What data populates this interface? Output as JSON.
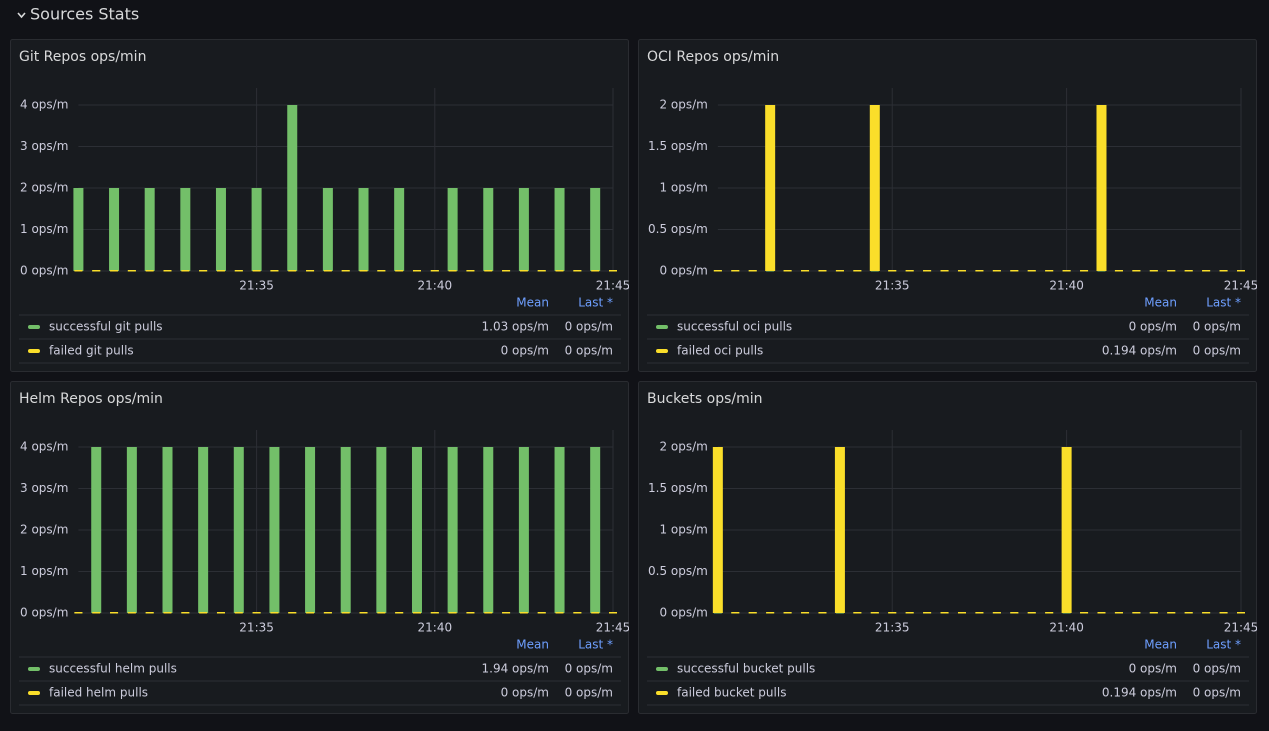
{
  "section_title": "Sources Stats",
  "chart_data": [
    {
      "type": "bar",
      "title": "Git Repos ops/min",
      "categories": [
        null,
        null,
        null,
        null,
        null,
        null,
        null,
        null,
        null,
        null,
        "21:35",
        null,
        null,
        null,
        null,
        null,
        null,
        null,
        null,
        null,
        "21:40",
        null,
        null,
        null,
        null,
        null,
        null,
        null,
        null,
        null,
        "21:45"
      ],
      "ylim": [
        0,
        4
      ],
      "yticks": [
        {
          "value": 0,
          "label": "0 ops/m"
        },
        {
          "value": 1,
          "label": "1 ops/m"
        },
        {
          "value": 2,
          "label": "2 ops/m"
        },
        {
          "value": 3,
          "label": "3 ops/m"
        },
        {
          "value": 4,
          "label": "4 ops/m"
        }
      ],
      "grid": true,
      "legend_columns": [
        "Mean",
        "Last *"
      ],
      "series": [
        {
          "name": "successful git pulls",
          "color": "#73bf69",
          "mean": "1.03 ops/m",
          "last": "0 ops/m",
          "values": [
            2,
            0,
            2,
            0,
            2,
            0,
            2,
            0,
            2,
            0,
            2,
            0,
            4,
            0,
            2,
            0,
            2,
            0,
            2,
            0,
            0,
            2,
            0,
            2,
            0,
            2,
            0,
            2,
            0,
            2,
            0
          ]
        },
        {
          "name": "failed git pulls",
          "color": "#fade2a",
          "mean": "0 ops/m",
          "last": "0 ops/m",
          "values": [
            0,
            0,
            0,
            0,
            0,
            0,
            0,
            0,
            0,
            0,
            0,
            0,
            0,
            0,
            0,
            0,
            0,
            0,
            0,
            0,
            0,
            0,
            0,
            0,
            0,
            0,
            0,
            0,
            0,
            0,
            0
          ]
        }
      ]
    },
    {
      "type": "bar",
      "title": "OCI Repos ops/min",
      "categories": [
        null,
        null,
        null,
        null,
        null,
        null,
        null,
        null,
        null,
        null,
        "21:35",
        null,
        null,
        null,
        null,
        null,
        null,
        null,
        null,
        null,
        "21:40",
        null,
        null,
        null,
        null,
        null,
        null,
        null,
        null,
        null,
        "21:45"
      ],
      "ylim": [
        0,
        2
      ],
      "yticks": [
        {
          "value": 0,
          "label": "0 ops/m"
        },
        {
          "value": 0.5,
          "label": "0.5 ops/m"
        },
        {
          "value": 1,
          "label": "1 ops/m"
        },
        {
          "value": 1.5,
          "label": "1.5 ops/m"
        },
        {
          "value": 2,
          "label": "2 ops/m"
        }
      ],
      "grid": true,
      "legend_columns": [
        "Mean",
        "Last *"
      ],
      "series": [
        {
          "name": "successful oci pulls",
          "color": "#73bf69",
          "mean": "0 ops/m",
          "last": "0 ops/m",
          "values": [
            0,
            0,
            0,
            0,
            0,
            0,
            0,
            0,
            0,
            0,
            0,
            0,
            0,
            0,
            0,
            0,
            0,
            0,
            0,
            0,
            0,
            0,
            0,
            0,
            0,
            0,
            0,
            0,
            0,
            0,
            0
          ]
        },
        {
          "name": "failed oci pulls",
          "color": "#fade2a",
          "mean": "0.194 ops/m",
          "last": "0 ops/m",
          "values": [
            0,
            0,
            0,
            2,
            0,
            0,
            0,
            0,
            0,
            2,
            0,
            0,
            0,
            0,
            0,
            0,
            0,
            0,
            0,
            0,
            0,
            0,
            2,
            0,
            0,
            0,
            0,
            0,
            0,
            0,
            0
          ]
        }
      ]
    },
    {
      "type": "bar",
      "title": "Helm Repos ops/min",
      "categories": [
        null,
        null,
        null,
        null,
        null,
        null,
        null,
        null,
        null,
        null,
        "21:35",
        null,
        null,
        null,
        null,
        null,
        null,
        null,
        null,
        null,
        "21:40",
        null,
        null,
        null,
        null,
        null,
        null,
        null,
        null,
        null,
        "21:45"
      ],
      "ylim": [
        0,
        4
      ],
      "yticks": [
        {
          "value": 0,
          "label": "0 ops/m"
        },
        {
          "value": 1,
          "label": "1 ops/m"
        },
        {
          "value": 2,
          "label": "2 ops/m"
        },
        {
          "value": 3,
          "label": "3 ops/m"
        },
        {
          "value": 4,
          "label": "4 ops/m"
        }
      ],
      "grid": true,
      "legend_columns": [
        "Mean",
        "Last *"
      ],
      "series": [
        {
          "name": "successful helm pulls",
          "color": "#73bf69",
          "mean": "1.94 ops/m",
          "last": "0 ops/m",
          "values": [
            0,
            4,
            0,
            4,
            0,
            4,
            0,
            4,
            0,
            4,
            0,
            4,
            0,
            4,
            0,
            4,
            0,
            4,
            0,
            4,
            0,
            4,
            0,
            4,
            0,
            4,
            0,
            4,
            0,
            4,
            0
          ]
        },
        {
          "name": "failed helm pulls",
          "color": "#fade2a",
          "mean": "0 ops/m",
          "last": "0 ops/m",
          "values": [
            0,
            0,
            0,
            0,
            0,
            0,
            0,
            0,
            0,
            0,
            0,
            0,
            0,
            0,
            0,
            0,
            0,
            0,
            0,
            0,
            0,
            0,
            0,
            0,
            0,
            0,
            0,
            0,
            0,
            0,
            0
          ]
        }
      ]
    },
    {
      "type": "bar",
      "title": "Buckets ops/min",
      "categories": [
        null,
        null,
        null,
        null,
        null,
        null,
        null,
        null,
        null,
        null,
        "21:35",
        null,
        null,
        null,
        null,
        null,
        null,
        null,
        null,
        null,
        "21:40",
        null,
        null,
        null,
        null,
        null,
        null,
        null,
        null,
        null,
        "21:45"
      ],
      "ylim": [
        0,
        2
      ],
      "yticks": [
        {
          "value": 0,
          "label": "0 ops/m"
        },
        {
          "value": 0.5,
          "label": "0.5 ops/m"
        },
        {
          "value": 1,
          "label": "1 ops/m"
        },
        {
          "value": 1.5,
          "label": "1.5 ops/m"
        },
        {
          "value": 2,
          "label": "2 ops/m"
        }
      ],
      "grid": true,
      "legend_columns": [
        "Mean",
        "Last *"
      ],
      "series": [
        {
          "name": "successful bucket pulls",
          "color": "#73bf69",
          "mean": "0 ops/m",
          "last": "0 ops/m",
          "values": [
            0,
            0,
            0,
            0,
            0,
            0,
            0,
            0,
            0,
            0,
            0,
            0,
            0,
            0,
            0,
            0,
            0,
            0,
            0,
            0,
            0,
            0,
            0,
            0,
            0,
            0,
            0,
            0,
            0,
            0,
            0
          ]
        },
        {
          "name": "failed bucket pulls",
          "color": "#fade2a",
          "mean": "0.194 ops/m",
          "last": "0 ops/m",
          "values": [
            2,
            0,
            0,
            0,
            0,
            0,
            0,
            2,
            0,
            0,
            0,
            0,
            0,
            0,
            0,
            0,
            0,
            0,
            0,
            0,
            2,
            0,
            0,
            0,
            0,
            0,
            0,
            0,
            0,
            0,
            0
          ]
        }
      ]
    }
  ]
}
